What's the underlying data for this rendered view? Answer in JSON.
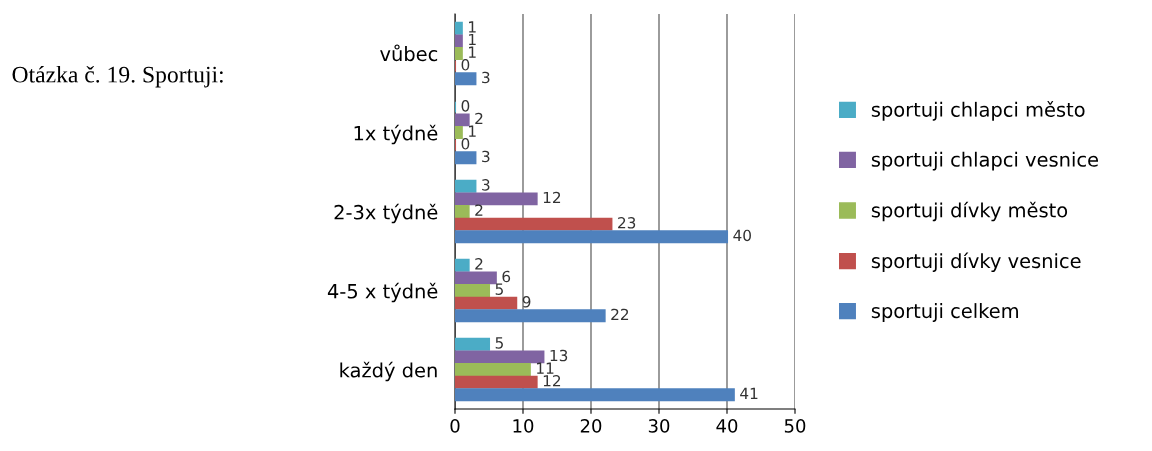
{
  "chart_data": {
    "type": "bar",
    "orientation": "horizontal",
    "title": "Otázka č. 19. Sportuji:",
    "categories": [
      "vůbec",
      "1x týdně",
      "2-3x týdně",
      "4-5 x týdně",
      "každý den"
    ],
    "series": [
      {
        "name": "sportuji chlapci město",
        "color": "#4bacc6",
        "values": [
          1,
          0,
          3,
          2,
          5
        ]
      },
      {
        "name": "sportuji chlapci vesnice",
        "color": "#8064a2",
        "values": [
          1,
          2,
          12,
          6,
          13
        ]
      },
      {
        "name": "sportuji dívky město",
        "color": "#9bbb59",
        "values": [
          1,
          1,
          2,
          5,
          11
        ]
      },
      {
        "name": "sportuji dívky vesnice",
        "color": "#c0504d",
        "values": [
          0,
          0,
          23,
          9,
          12
        ]
      },
      {
        "name": "sportuji celkem",
        "color": "#4f81bd",
        "values": [
          3,
          3,
          40,
          22,
          41
        ]
      }
    ],
    "xlim": [
      0,
      50
    ],
    "xticks": [
      0,
      10,
      20,
      30,
      40,
      50
    ],
    "grid": "x",
    "legend": "right",
    "data_labels": true
  }
}
